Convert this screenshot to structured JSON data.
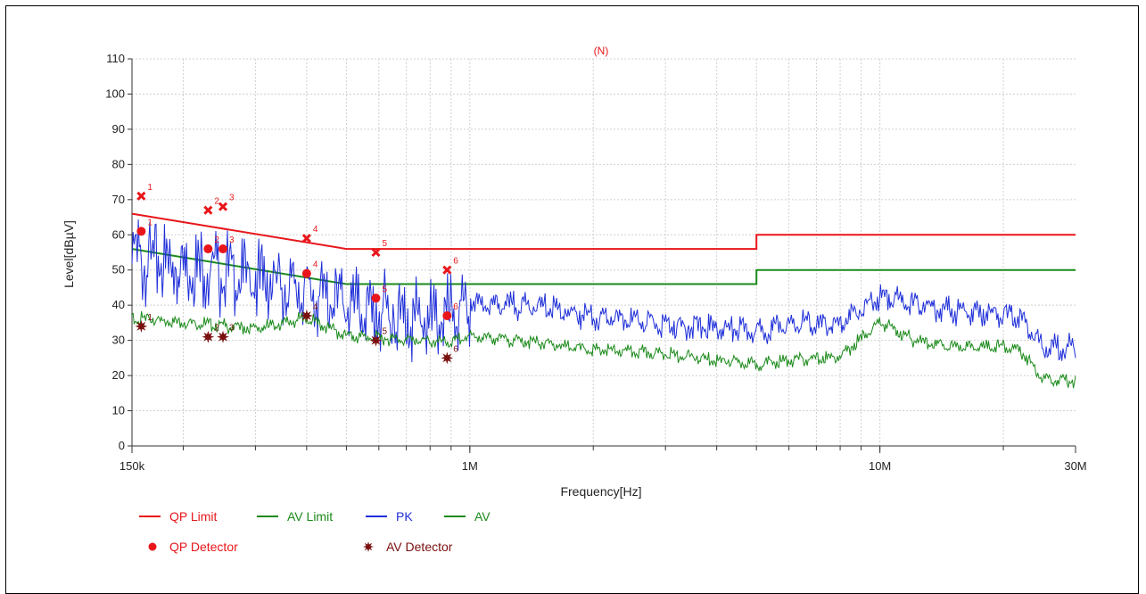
{
  "chart_data": {
    "type": "line",
    "title": "(N)",
    "xlabel": "Frequency[Hz]",
    "ylabel": "Level[dBµV]",
    "x_scale": "log",
    "xlim": [
      150000,
      30000000
    ],
    "ylim": [
      0,
      110
    ],
    "y_ticks": [
      0,
      10,
      20,
      30,
      40,
      50,
      60,
      70,
      80,
      90,
      100,
      110
    ],
    "x_tick_labels": [
      {
        "value": 150000,
        "label": "150k"
      },
      {
        "value": 1000000,
        "label": "1M"
      },
      {
        "value": 10000000,
        "label": "10M"
      },
      {
        "value": 30000000,
        "label": "30M"
      }
    ],
    "grid": true,
    "legend_position": "bottom-left",
    "series": [
      {
        "name": "QP Limit",
        "color": "#e8161b",
        "style": "line",
        "x": [
          150000,
          500000,
          500000,
          5000000,
          5000000,
          30000000
        ],
        "values": [
          66,
          56,
          56,
          56,
          60,
          60
        ]
      },
      {
        "name": "AV Limit",
        "color": "#1b8a1b",
        "style": "line",
        "x": [
          150000,
          500000,
          500000,
          5000000,
          5000000,
          30000000
        ],
        "values": [
          56,
          46,
          46,
          46,
          50,
          50
        ]
      },
      {
        "name": "PK",
        "color": "#1f2fd8",
        "style": "line",
        "x": [
          150000,
          200000,
          300000,
          400000,
          500000,
          600000,
          800000,
          1000000,
          1500000,
          2000000,
          3000000,
          4000000,
          5000000,
          6000000,
          8000000,
          10000000,
          12000000,
          15000000,
          20000000,
          22000000,
          25000000,
          30000000
        ],
        "values": [
          58,
          56,
          52,
          48,
          45,
          42,
          40,
          42,
          41,
          38,
          36,
          35,
          34,
          36,
          36,
          44,
          42,
          40,
          39,
          38,
          30,
          29
        ]
      },
      {
        "name": "AV",
        "color": "#1b8a1b",
        "style": "line",
        "x": [
          150000,
          200000,
          300000,
          400000,
          500000,
          700000,
          900000,
          1000000,
          1500000,
          2000000,
          3000000,
          4000000,
          5000000,
          6000000,
          8000000,
          10000000,
          12000000,
          15000000,
          20000000,
          22000000,
          25000000,
          30000000
        ],
        "values": [
          37,
          36,
          34,
          37,
          32,
          31,
          30,
          32,
          30,
          28,
          27,
          25,
          24,
          25,
          26,
          36,
          31,
          29,
          29,
          28,
          20,
          19
        ]
      },
      {
        "name": "QP Detector",
        "color": "#e8161b",
        "style": "marker",
        "markers": [
          {
            "label": "1",
            "x": 158000,
            "y": 61
          },
          {
            "label": "2",
            "x": 230000,
            "y": 56
          },
          {
            "label": "3",
            "x": 250000,
            "y": 56
          },
          {
            "label": "4",
            "x": 400000,
            "y": 49
          },
          {
            "label": "5",
            "x": 590000,
            "y": 42
          },
          {
            "label": "6",
            "x": 880000,
            "y": 37
          }
        ]
      },
      {
        "name": "AV Detector",
        "color": "#7a1010",
        "style": "marker",
        "markers": [
          {
            "label": "1",
            "x": 158000,
            "y": 34
          },
          {
            "label": "2",
            "x": 230000,
            "y": 31
          },
          {
            "label": "3",
            "x": 250000,
            "y": 31
          },
          {
            "label": "4",
            "x": 400000,
            "y": 37
          },
          {
            "label": "5",
            "x": 590000,
            "y": 30
          },
          {
            "label": "6",
            "x": 880000,
            "y": 25
          }
        ]
      }
    ],
    "peak_markers": {
      "color": "#e8161b",
      "markers": [
        {
          "label": "1",
          "x": 158000,
          "y": 71
        },
        {
          "label": "2",
          "x": 230000,
          "y": 67
        },
        {
          "label": "3",
          "x": 250000,
          "y": 68
        },
        {
          "label": "4",
          "x": 400000,
          "y": 59
        },
        {
          "label": "5",
          "x": 590000,
          "y": 55
        },
        {
          "label": "6",
          "x": 880000,
          "y": 50
        }
      ]
    },
    "legend": [
      {
        "label": "QP Limit",
        "color": "#e8161b",
        "kind": "line"
      },
      {
        "label": "AV Limit",
        "color": "#1b8a1b",
        "kind": "line"
      },
      {
        "label": "PK",
        "color": "#1f2fd8",
        "kind": "line"
      },
      {
        "label": "AV",
        "color": "#1b8a1b",
        "kind": "line"
      },
      {
        "label": "QP Detector",
        "color": "#e8161b",
        "kind": "dot"
      },
      {
        "label": "AV Detector",
        "color": "#7a1010",
        "kind": "star"
      }
    ]
  }
}
